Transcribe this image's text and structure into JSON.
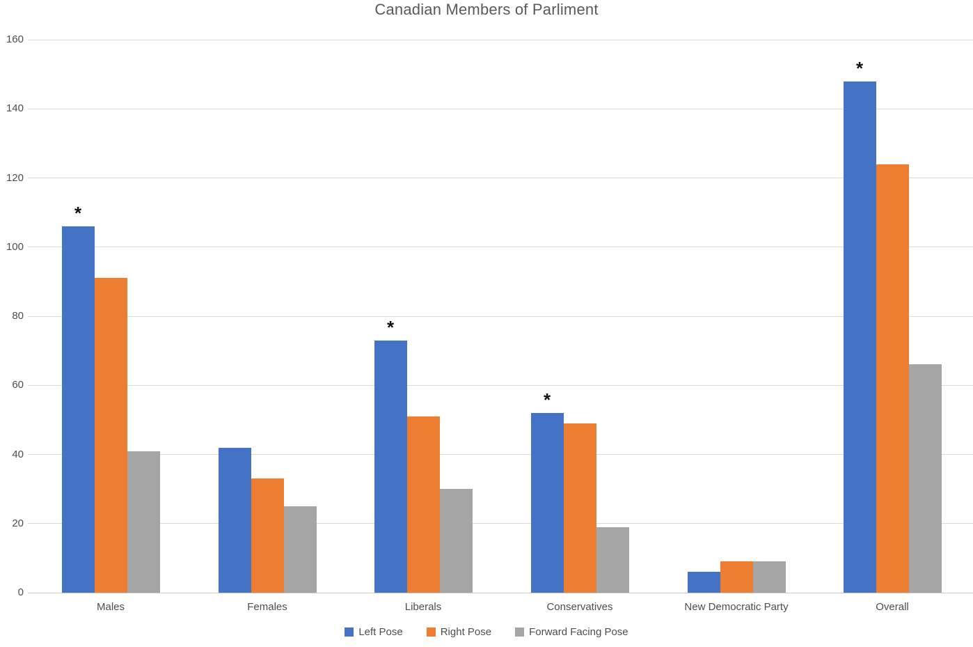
{
  "chart_data": {
    "type": "bar",
    "title": "Canadian Members of Parliment",
    "categories": [
      "Males",
      "Females",
      "Liberals",
      "Conservatives",
      "New Democratic Party",
      "Overall"
    ],
    "series": [
      {
        "name": "Left Pose",
        "color": "#4472C4",
        "values": [
          106,
          42,
          73,
          52,
          6,
          148
        ]
      },
      {
        "name": "Right Pose",
        "color": "#ED7D31",
        "values": [
          91,
          33,
          51,
          49,
          9,
          124
        ]
      },
      {
        "name": "Forward Facing Pose",
        "color": "#A5A5A5",
        "values": [
          41,
          25,
          30,
          19,
          9,
          66
        ]
      }
    ],
    "annotations": {
      "symbol": "*",
      "on_series": "Left Pose",
      "flagged_categories": [
        "Males",
        "Liberals",
        "Conservatives",
        "Overall"
      ]
    },
    "y_axis": {
      "min": 0,
      "max": 160,
      "step": 20,
      "ticks": [
        0,
        20,
        40,
        60,
        80,
        100,
        120,
        140,
        160
      ]
    },
    "grid": true,
    "legend_position": "bottom",
    "style_colors": {
      "gridline": "#d9d9d9",
      "text": "#4d4d4d",
      "title_text": "#595959",
      "annotation": "#111111",
      "background": "#ffffff"
    }
  }
}
